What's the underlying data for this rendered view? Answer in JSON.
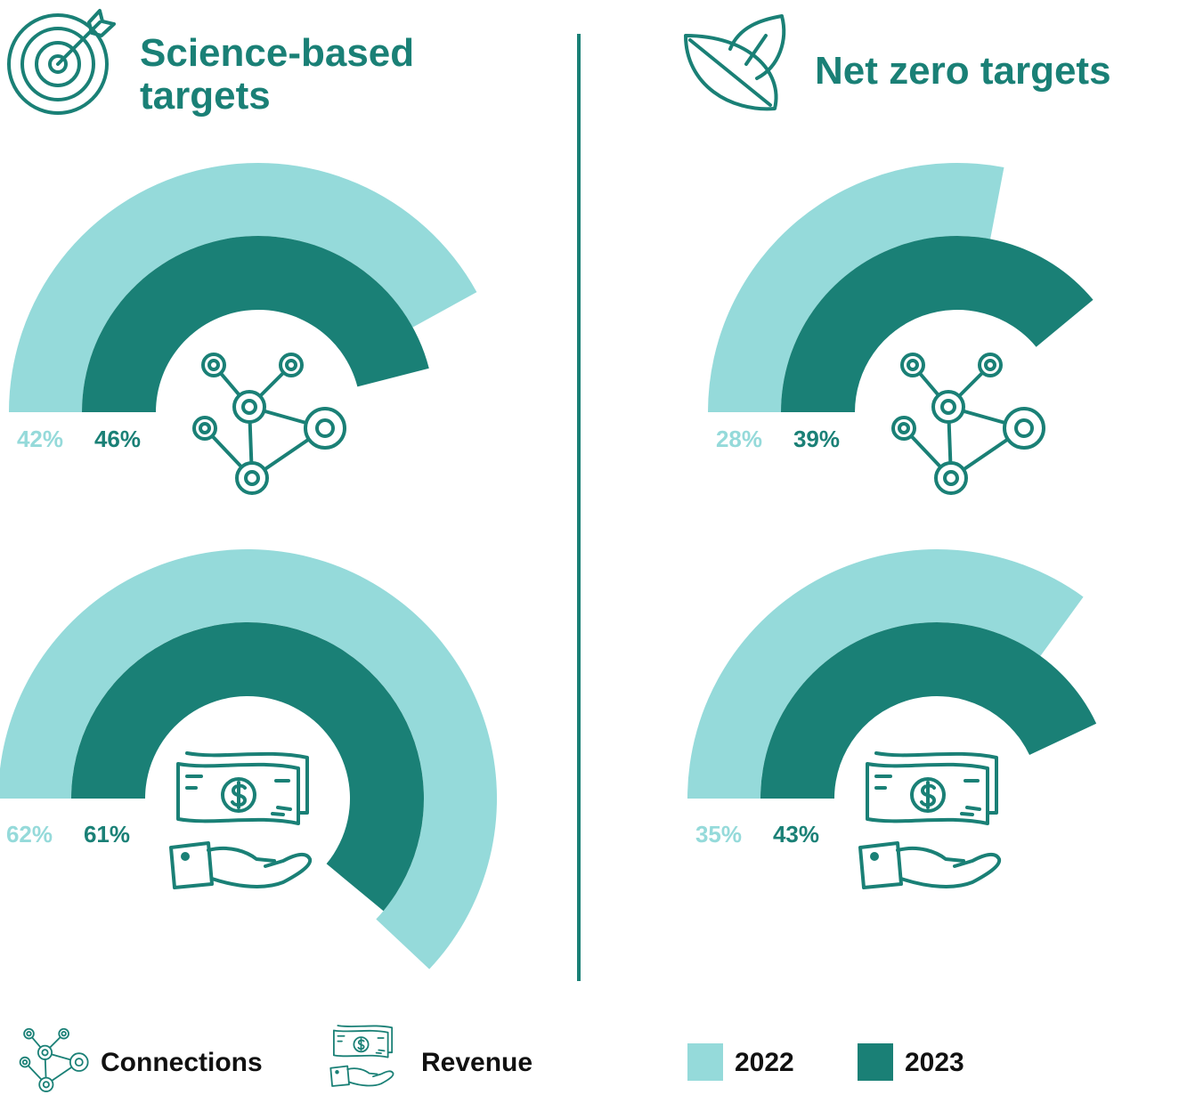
{
  "chart_data": {
    "type": "radial_bar",
    "ylim": [
      0,
      100
    ],
    "groups": [
      "Science-based targets",
      "Net zero targets"
    ],
    "categories": [
      "Connections",
      "Revenue"
    ],
    "series": [
      {
        "name": "2022",
        "color": "#95dada",
        "values": [
          [
            42,
            62
          ],
          [
            28,
            35
          ]
        ],
        "value_labels": [
          [
            "42%",
            "62%"
          ],
          [
            "28%",
            "35%"
          ]
        ]
      },
      {
        "name": "2023",
        "color": "#1a8076",
        "values": [
          [
            46,
            61
          ],
          [
            39,
            43
          ]
        ],
        "value_labels": [
          [
            "46%",
            "61%"
          ],
          [
            "39%",
            "43%"
          ]
        ]
      }
    ]
  }
}
